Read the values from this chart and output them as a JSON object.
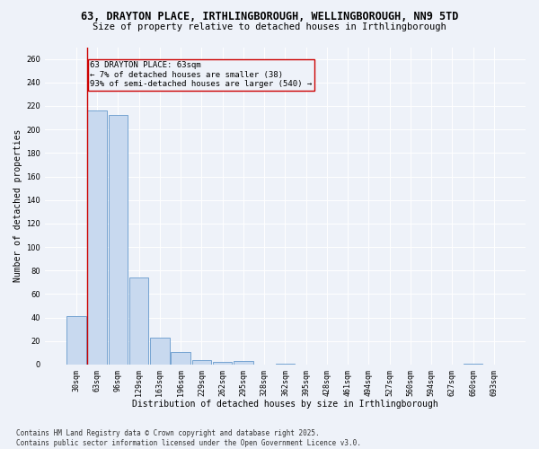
{
  "title_line1": "63, DRAYTON PLACE, IRTHLINGBOROUGH, WELLINGBOROUGH, NN9 5TD",
  "title_line2": "Size of property relative to detached houses in Irthlingborough",
  "xlabel": "Distribution of detached houses by size in Irthlingborough",
  "ylabel": "Number of detached properties",
  "categories": [
    "30sqm",
    "63sqm",
    "96sqm",
    "129sqm",
    "163sqm",
    "196sqm",
    "229sqm",
    "262sqm",
    "295sqm",
    "328sqm",
    "362sqm",
    "395sqm",
    "428sqm",
    "461sqm",
    "494sqm",
    "527sqm",
    "560sqm",
    "594sqm",
    "627sqm",
    "660sqm",
    "693sqm"
  ],
  "values": [
    41,
    216,
    212,
    74,
    23,
    11,
    4,
    2,
    3,
    0,
    1,
    0,
    0,
    0,
    0,
    0,
    0,
    0,
    0,
    1,
    0
  ],
  "bar_color": "#c8d9ef",
  "bar_edge_color": "#6699cc",
  "highlight_bar_index": 1,
  "highlight_line_color": "#cc0000",
  "annotation_text": "63 DRAYTON PLACE: 63sqm\n← 7% of detached houses are smaller (38)\n93% of semi-detached houses are larger (540) →",
  "annotation_box_color": "#cc0000",
  "ylim": [
    0,
    270
  ],
  "yticks": [
    0,
    20,
    40,
    60,
    80,
    100,
    120,
    140,
    160,
    180,
    200,
    220,
    240,
    260
  ],
  "background_color": "#eef2f9",
  "grid_color": "#ffffff",
  "footnote": "Contains HM Land Registry data © Crown copyright and database right 2025.\nContains public sector information licensed under the Open Government Licence v3.0.",
  "title_fontsize": 8.5,
  "subtitle_fontsize": 7.5,
  "xlabel_fontsize": 7,
  "ylabel_fontsize": 7,
  "tick_fontsize": 6,
  "annot_fontsize": 6.5,
  "footnote_fontsize": 5.5
}
